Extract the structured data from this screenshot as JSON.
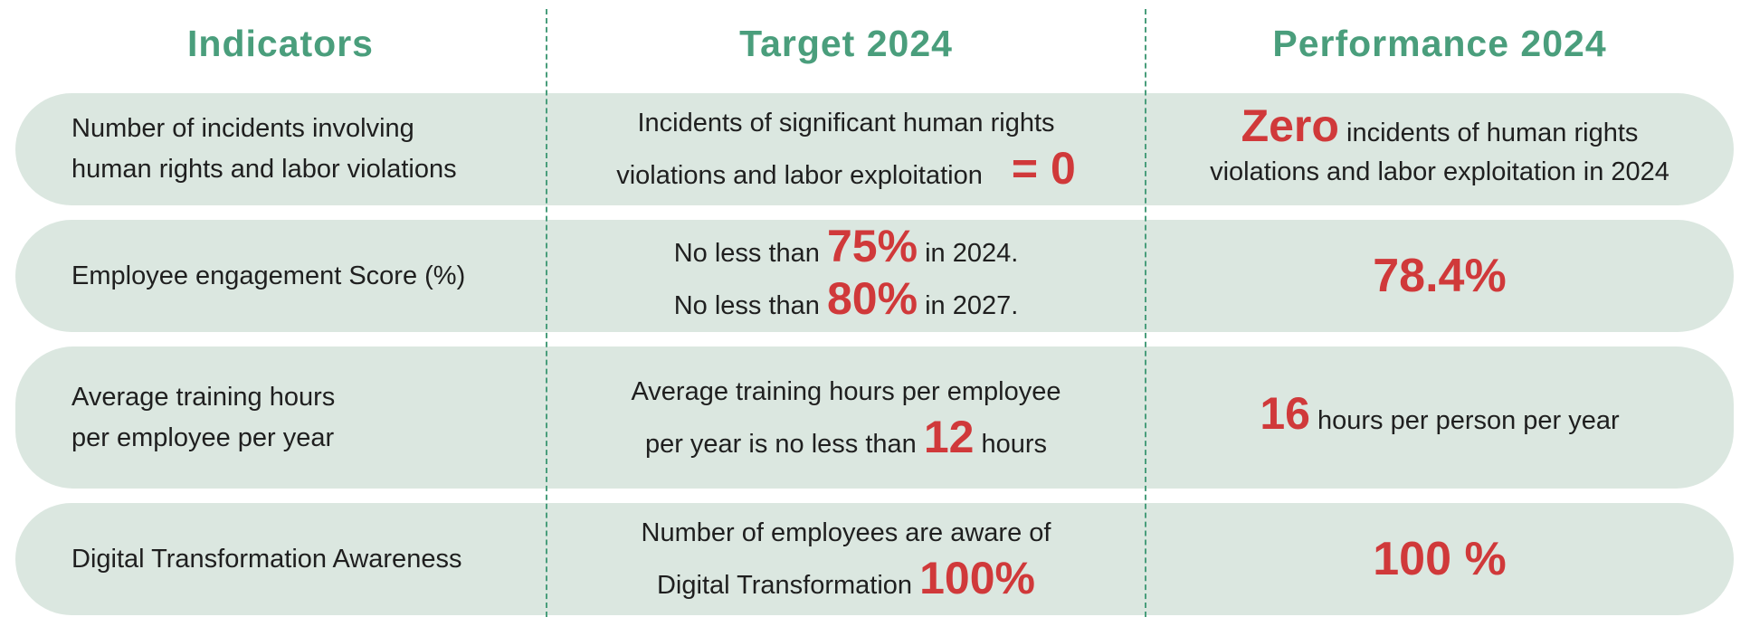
{
  "header": {
    "indicators": "Indicators",
    "target": "Target 2024",
    "performance": "Performance 2024"
  },
  "rows": [
    {
      "indicator": [
        "Number of incidents involving",
        "human rights and labor violations"
      ],
      "target": {
        "line1": "Incidents of significant human rights",
        "line2_pre": "violations and labor exploitation",
        "line2_hl": "= 0"
      },
      "performance": {
        "line1_hl": "Zero",
        "line1_post": " incidents of human rights",
        "line2": "violations and labor exploitation in 2024"
      }
    },
    {
      "indicator": [
        "Employee engagement Score (%)"
      ],
      "target": {
        "line1_pre": "No less than ",
        "line1_hl": "75%",
        "line1_post": " in 2024.",
        "line2_pre": "No less than ",
        "line2_hl": "80%",
        "line2_post": " in 2027."
      },
      "performance": {
        "value": "78.4%"
      }
    },
    {
      "indicator": [
        "Average training hours",
        "per employee per year"
      ],
      "target": {
        "line1": "Average training hours per employee",
        "line2_pre": "per year is no less than ",
        "line2_hl": "12",
        "line2_post": " hours"
      },
      "performance": {
        "hl": "16",
        "post": " hours per person per year"
      }
    },
    {
      "indicator": [
        "Digital Transformation Awareness"
      ],
      "target": {
        "line1": "Number of employees are aware of",
        "line2_pre": "Digital Transformation ",
        "line2_hl": "100%"
      },
      "performance": {
        "value": "100 %"
      }
    }
  ],
  "colors": {
    "accent_green": "#4a9e7c",
    "highlight_red": "#d0393a",
    "row_background": "#dbe7e0"
  }
}
